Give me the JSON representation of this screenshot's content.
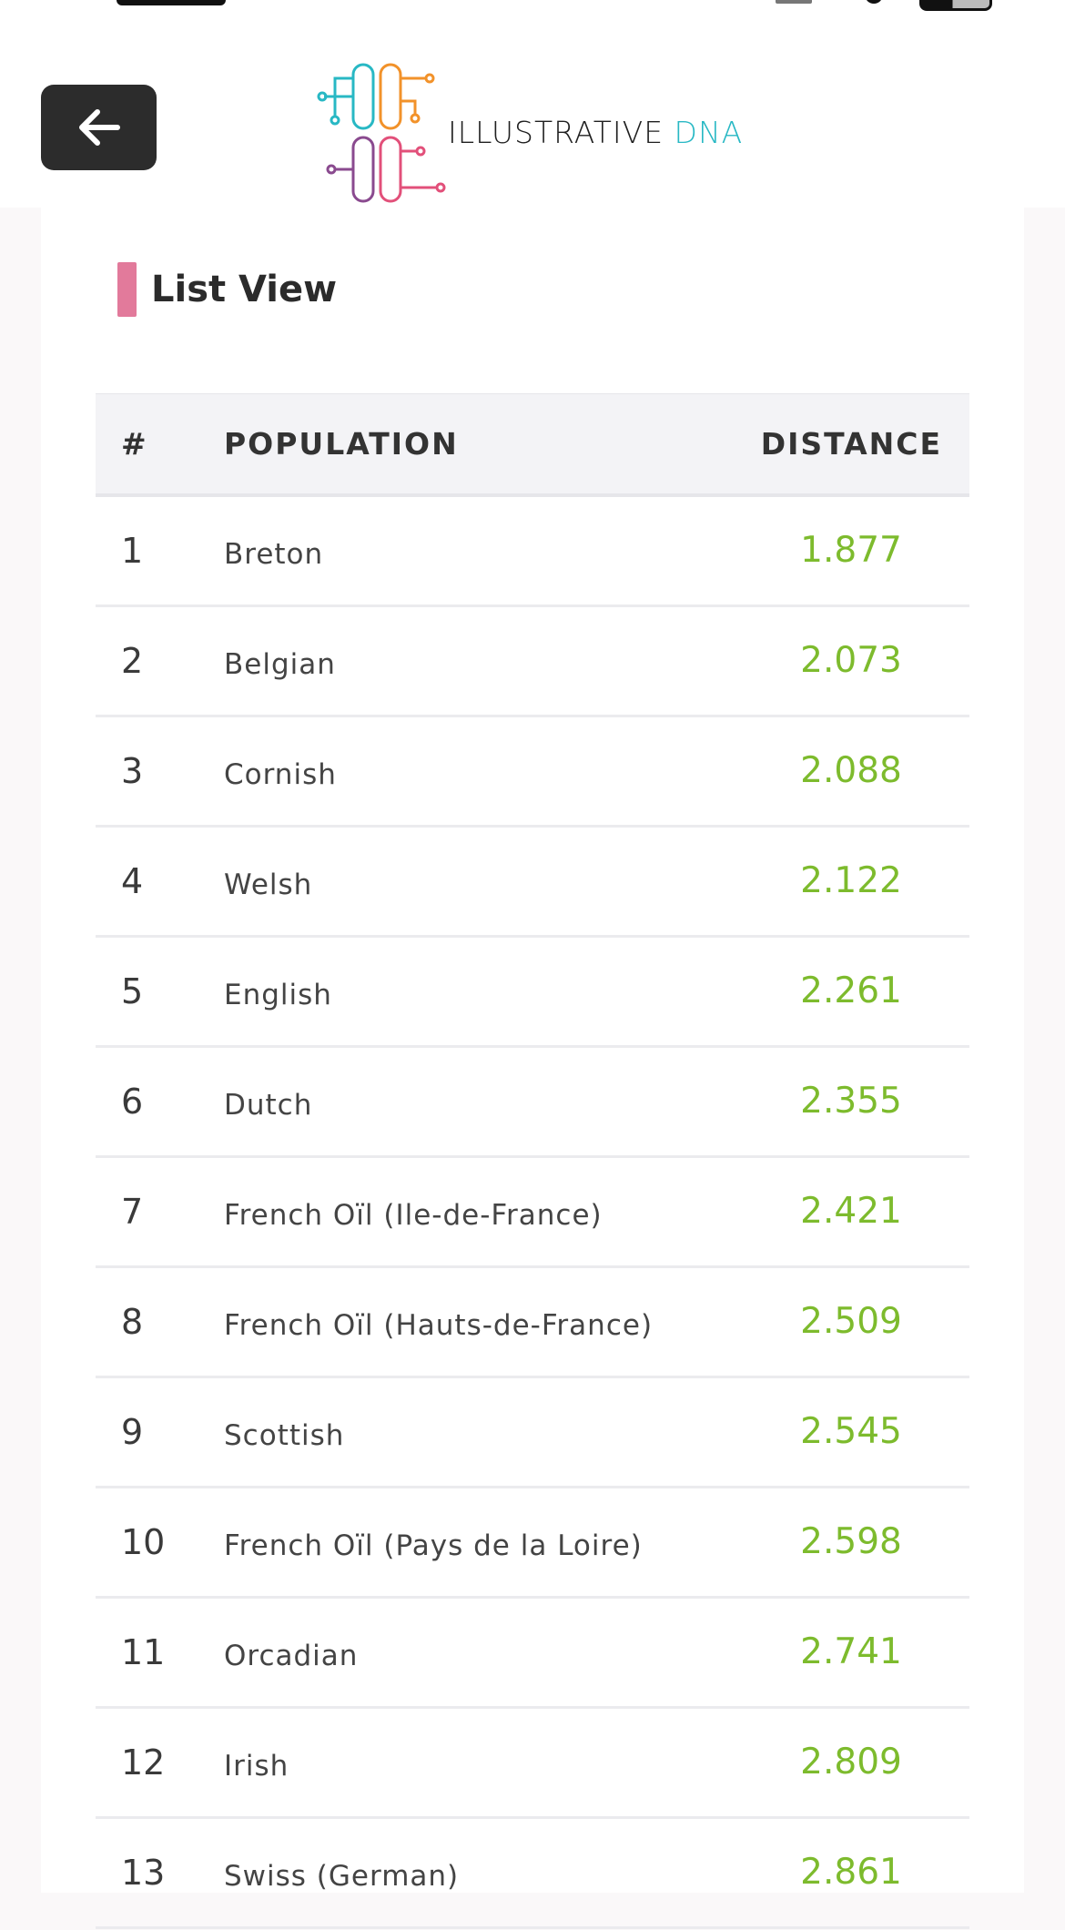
{
  "header": {
    "logo_text_dark": "ILLUSTRATIVE ",
    "logo_text_accent": "DNA"
  },
  "section": {
    "title": "List View"
  },
  "table": {
    "columns": [
      "#",
      "POPULATION",
      "DISTANCE"
    ],
    "rows": [
      {
        "rank": "1",
        "population": "Breton",
        "distance": "1.877"
      },
      {
        "rank": "2",
        "population": "Belgian",
        "distance": "2.073"
      },
      {
        "rank": "3",
        "population": "Cornish",
        "distance": "2.088"
      },
      {
        "rank": "4",
        "population": "Welsh",
        "distance": "2.122"
      },
      {
        "rank": "5",
        "population": "English",
        "distance": "2.261"
      },
      {
        "rank": "6",
        "population": "Dutch",
        "distance": "2.355"
      },
      {
        "rank": "7",
        "population": "French Oïl (Ile-de-France)",
        "distance": "2.421"
      },
      {
        "rank": "8",
        "population": "French Oïl (Hauts-de-France)",
        "distance": "2.509"
      },
      {
        "rank": "9",
        "population": "Scottish",
        "distance": "2.545"
      },
      {
        "rank": "10",
        "population": "French Oïl (Pays de la Loire)",
        "distance": "2.598"
      },
      {
        "rank": "11",
        "population": "Orcadian",
        "distance": "2.741"
      },
      {
        "rank": "12",
        "population": "Irish",
        "distance": "2.809"
      },
      {
        "rank": "13",
        "population": "Swiss (German)",
        "distance": "2.861"
      }
    ]
  },
  "colors": {
    "accent_bar": "#e27a9b",
    "distance_green": "#7dbb2d",
    "back_button_bg": "#2c2c2c",
    "logo_teal": "#28b8c4"
  },
  "icons": {
    "back": "arrow-left-icon",
    "logo": "dna-logo-icon"
  }
}
